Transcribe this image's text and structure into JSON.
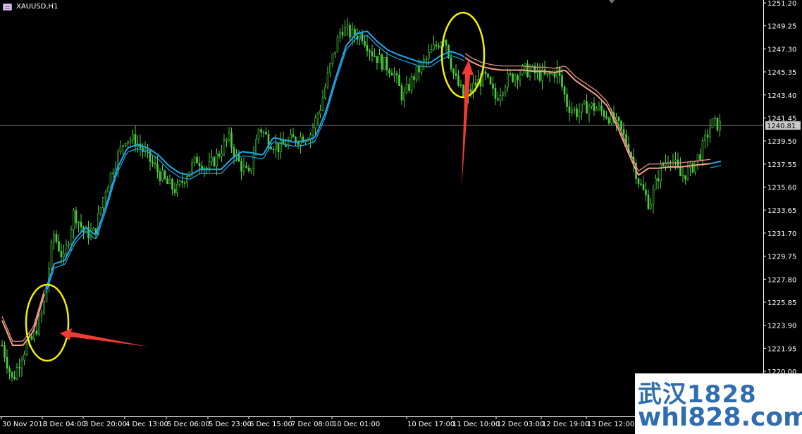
{
  "window": {
    "title": "XAUUSD,H1",
    "icon": "chart-window-icon"
  },
  "chart_data": {
    "type": "candlestick",
    "symbol": "XAUUSD",
    "timeframe": "H1",
    "ylim": [
      1220.0,
      1251.2
    ],
    "y_ticks": [
      "1251.20",
      "1249.25",
      "1247.30",
      "1245.35",
      "1243.40",
      "1241.45",
      "1239.50",
      "1237.55",
      "1235.60",
      "1233.65",
      "1231.70",
      "1229.75",
      "1227.80",
      "1225.85",
      "1223.90",
      "1221.95",
      "1220.00"
    ],
    "x_ticks": [
      "30 Nov 2018",
      "3 Dec 04:00",
      "3 Dec 20:00",
      "4 Dec 13:00",
      "5 Dec 06:00",
      "5 Dec 23:00",
      "6 Dec 15:00",
      "7 Dec 08:00",
      "10 Dec 01:00",
      "10 Dec 17:00",
      "11 Dec 10:00",
      "12 Dec 03:00",
      "12 Dec 19:00",
      "13 Dec 12:00"
    ],
    "current_price": "1240.81",
    "grid": false,
    "colors": {
      "background": "#000000",
      "candle": "#4cd13c",
      "ma_up": "#1ea7e8",
      "ma_down": "#f4a08a",
      "price_line": "#7a7a7a",
      "axis_text": "#ffffff",
      "annotation_circle": "#f4f000",
      "annotation_arrow": "#f03a32"
    },
    "close_samples": [
      1222.2,
      1219.2,
      1221.6,
      1222.8,
      1225.2,
      1231.7,
      1229.4,
      1233.5,
      1231.7,
      1231.7,
      1235.3,
      1237.7,
      1239.8,
      1239.5,
      1238.3,
      1237.1,
      1235.9,
      1235.3,
      1236.8,
      1238.0,
      1237.1,
      1238.3,
      1239.8,
      1237.7,
      1236.5,
      1240.7,
      1239.5,
      1238.9,
      1239.5,
      1239.8,
      1240.1,
      1242.5,
      1246.1,
      1249.1,
      1248.5,
      1248.5,
      1247.0,
      1246.1,
      1245.5,
      1243.1,
      1244.9,
      1246.1,
      1247.3,
      1248.5,
      1244.9,
      1243.1,
      1244.3,
      1244.9,
      1243.1,
      1244.6,
      1245.2,
      1245.5,
      1245.2,
      1244.9,
      1245.5,
      1242.5,
      1241.9,
      1242.5,
      1242.2,
      1241.6,
      1240.7,
      1238.9,
      1235.9,
      1234.1,
      1237.1,
      1238.3,
      1236.5,
      1237.1,
      1238.6,
      1241.0,
      1240.81
    ],
    "ma_samples": [
      1224.3,
      1222.2,
      1222.2,
      1223.4,
      1226.4,
      1229.1,
      1229.4,
      1231.2,
      1232.2,
      1231.5,
      1234.1,
      1237.1,
      1238.9,
      1239.2,
      1238.9,
      1238.3,
      1237.4,
      1236.8,
      1236.6,
      1237.1,
      1237.1,
      1237.1,
      1238.0,
      1238.6,
      1238.5,
      1238.3,
      1239.8,
      1239.6,
      1239.4,
      1239.5,
      1239.8,
      1241.9,
      1244.9,
      1247.6,
      1248.6,
      1248.8,
      1247.9,
      1247.2,
      1246.8,
      1246.5,
      1246.2,
      1246.1,
      1246.7,
      1247.1,
      1246.8,
      1246.2,
      1245.8,
      1245.6,
      1245.5,
      1245.5,
      1245.5,
      1245.4,
      1245.4,
      1245.3,
      1245.5,
      1244.6,
      1244.0,
      1243.4,
      1242.5,
      1240.7,
      1238.6,
      1236.6,
      1237.2,
      1237.2,
      1237.3,
      1237.3,
      1237.4,
      1237.5,
      1237.6,
      1237.8
    ],
    "ma_trend": [
      "down",
      "up",
      "down",
      "up"
    ],
    "annotations": [
      {
        "type": "circle",
        "at": "3 Dec 04:00",
        "price": 1224.0
      },
      {
        "type": "arrow",
        "points_to": "3 Dec 04:00",
        "price": 1223.5
      },
      {
        "type": "circle",
        "at": "11 Dec 10:00",
        "price": 1247.0
      },
      {
        "type": "arrow",
        "points_to": "11 Dec 10:00",
        "price": 1246.5
      }
    ]
  },
  "watermark": {
    "line1": "武汉1828",
    "line2": "whl828.com"
  }
}
